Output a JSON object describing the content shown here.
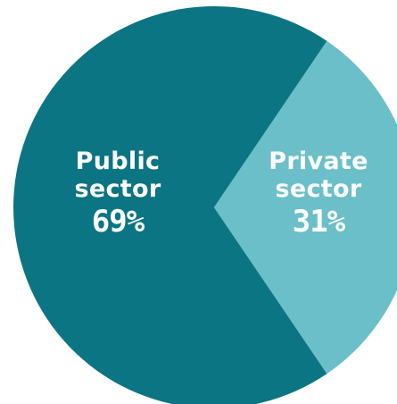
{
  "chart_data": {
    "type": "pie",
    "slices": [
      {
        "label_line1": "Public",
        "label_line2": "sector",
        "value": 69,
        "value_label": "69%",
        "color": "#0b7583"
      },
      {
        "label_line1": "Private",
        "label_line2": "sector",
        "value": 31,
        "value_label": "31%",
        "color": "#6bbfc8"
      }
    ]
  }
}
